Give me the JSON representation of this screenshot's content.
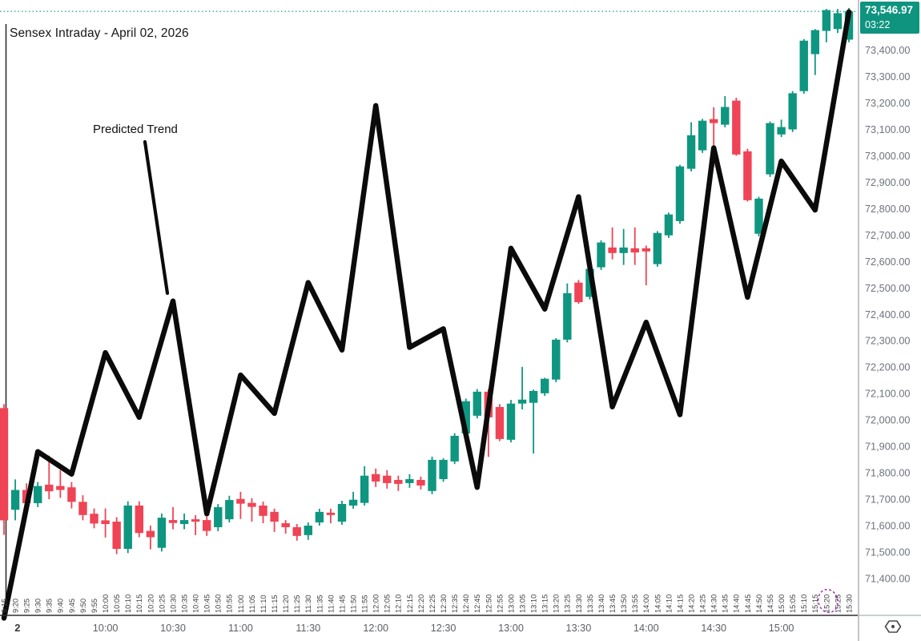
{
  "header": {
    "title": "Sensex Intraday - April 02, 2026"
  },
  "trend_annotation": {
    "label": "Predicted Trend"
  },
  "price_axis": {
    "badge": {
      "price": "73,546.97",
      "countdown": "03:22"
    },
    "tick_labels": [
      "73,400.00",
      "73,300.00",
      "73,200.00",
      "73,100.00",
      "73,000.00",
      "72,900.00",
      "72,800.00",
      "72,700.00",
      "72,600.00",
      "72,500.00",
      "72,400.00",
      "72,300.00",
      "72,200.00",
      "72,100.00",
      "72,000.00",
      "71,900.00",
      "71,800.00",
      "71,700.00",
      "71,600.00",
      "71,500.00",
      "71,400.00"
    ]
  },
  "time_axis": {
    "major_labels": [
      {
        "label": "2",
        "time": "9:21",
        "date_marker": true
      },
      {
        "label": "10:00",
        "time": "10:00",
        "date_marker": false
      },
      {
        "label": "10:30",
        "time": "10:30",
        "date_marker": false
      },
      {
        "label": "11:00",
        "time": "11:00",
        "date_marker": false
      },
      {
        "label": "11:30",
        "time": "11:30",
        "date_marker": false
      },
      {
        "label": "12:00",
        "time": "12:00",
        "date_marker": false
      },
      {
        "label": "12:30",
        "time": "12:30",
        "date_marker": false
      },
      {
        "label": "13:00",
        "time": "13:00",
        "date_marker": false
      },
      {
        "label": "13:30",
        "time": "13:30",
        "date_marker": false
      },
      {
        "label": "14:00",
        "time": "14:00",
        "date_marker": false
      },
      {
        "label": "14:30",
        "time": "14:30",
        "date_marker": false
      },
      {
        "label": "15:00",
        "time": "15:00",
        "date_marker": false
      }
    ],
    "circled_minor_label": "15:20",
    "circle_color": "#a23ab2"
  },
  "colors": {
    "up": "#0f9680",
    "down": "#ef4455",
    "trend": "#0b0b0b",
    "badge_bg": "#0f9480",
    "price_text": "#6f727c",
    "minor_text": "#3a3c40",
    "major_text": "#5c5e63",
    "axis_line": "#999ca6",
    "overlay_axis_line": "#2f2f2f"
  },
  "chart_data": {
    "type": [
      "candlestick",
      "line"
    ],
    "title": "Sensex Intraday - April 02, 2026",
    "instrument": "Sensex",
    "interval_minutes": 5,
    "session": [
      "9:15",
      "15:30"
    ],
    "ylim": [
      71330,
      73590
    ],
    "y_tick_step": 100,
    "last_price": 73546.97,
    "bar_countdown": "03:22",
    "candles": {
      "columns": [
        "time",
        "open",
        "high",
        "low",
        "close"
      ],
      "rows": [
        [
          "9:15",
          72045,
          72060,
          71565,
          71620
        ],
        [
          "9:20",
          71660,
          71775,
          71620,
          71735
        ],
        [
          "9:25",
          71735,
          71760,
          71655,
          71685
        ],
        [
          "9:30",
          71685,
          71765,
          71670,
          71750
        ],
        [
          "9:35",
          71755,
          71865,
          71700,
          71730
        ],
        [
          "9:40",
          71750,
          71810,
          71705,
          71735
        ],
        [
          "9:45",
          71745,
          71765,
          71665,
          71690
        ],
        [
          "9:50",
          71690,
          71715,
          71620,
          71640
        ],
        [
          "9:55",
          71645,
          71665,
          71590,
          71608
        ],
        [
          "10:00",
          71620,
          71665,
          71555,
          71606
        ],
        [
          "10:05",
          71615,
          71632,
          71492,
          71512
        ],
        [
          "10:10",
          71512,
          71692,
          71496,
          71676
        ],
        [
          "10:15",
          71676,
          71692,
          71556,
          71572
        ],
        [
          "10:20",
          71580,
          71600,
          71510,
          71556
        ],
        [
          "10:25",
          71516,
          71646,
          71502,
          71630
        ],
        [
          "10:30",
          71621,
          71670,
          71586,
          71610
        ],
        [
          "10:35",
          71606,
          71646,
          71586,
          71621
        ],
        [
          "10:40",
          71624,
          71640,
          71564,
          71615
        ],
        [
          "10:45",
          71621,
          71634,
          71561,
          71580
        ],
        [
          "10:50",
          71594,
          71682,
          71579,
          71670
        ],
        [
          "10:55",
          71624,
          71713,
          71612,
          71697
        ],
        [
          "11:00",
          71701,
          71728,
          71625,
          71683
        ],
        [
          "11:05",
          71686,
          71704,
          71615,
          71671
        ],
        [
          "11:10",
          71676,
          71691,
          71609,
          71637
        ],
        [
          "11:15",
          71652,
          71664,
          71576,
          71615
        ],
        [
          "11:20",
          71609,
          71621,
          71570,
          71594
        ],
        [
          "11:25",
          71594,
          71606,
          71543,
          71561
        ],
        [
          "11:30",
          71564,
          71612,
          71546,
          71600
        ],
        [
          "11:35",
          71612,
          71664,
          71600,
          71652
        ],
        [
          "11:40",
          71649,
          71664,
          71609,
          71640
        ],
        [
          "11:45",
          71615,
          71694,
          71603,
          71682
        ],
        [
          "11:50",
          71676,
          71728,
          71664,
          71698
        ],
        [
          "11:55",
          71686,
          71825,
          71676,
          71789
        ],
        [
          "12:00",
          71795,
          71816,
          71746,
          71767
        ],
        [
          "12:05",
          71789,
          71810,
          71740,
          71761
        ],
        [
          "12:10",
          71773,
          71789,
          71731,
          71758
        ],
        [
          "12:15",
          71761,
          71795,
          71743,
          71776
        ],
        [
          "12:20",
          71773,
          71785,
          71737,
          71752
        ],
        [
          "12:25",
          71731,
          71861,
          71719,
          71849
        ],
        [
          "12:30",
          71776,
          71855,
          71766,
          71849
        ],
        [
          "12:35",
          71843,
          71950,
          71833,
          71940
        ],
        [
          "12:40",
          71949,
          72081,
          71939,
          72071
        ],
        [
          "12:45",
          72016,
          72117,
          72006,
          72107
        ],
        [
          "12:50",
          72107,
          72117,
          71860,
          72010
        ],
        [
          "12:55",
          72049,
          72060,
          71920,
          71928
        ],
        [
          "13:00",
          71925,
          72076,
          71915,
          72062
        ],
        [
          "13:05",
          72062,
          72201,
          72040,
          72077
        ],
        [
          "13:10",
          72065,
          72115,
          71873,
          72110
        ],
        [
          "13:15",
          72101,
          72160,
          72091,
          72156
        ],
        [
          "13:20",
          72153,
          72310,
          72143,
          72304
        ],
        [
          "13:25",
          72304,
          72517,
          72294,
          72480
        ],
        [
          "13:30",
          72520,
          72530,
          72440,
          72446
        ],
        [
          "13:35",
          72466,
          72582,
          72456,
          72572
        ],
        [
          "13:40",
          72578,
          72680,
          72568,
          72672
        ],
        [
          "13:45",
          72653,
          72729,
          72608,
          72632
        ],
        [
          "13:50",
          72632,
          72723,
          72587,
          72653
        ],
        [
          "13:55",
          72650,
          72729,
          72587,
          72634
        ],
        [
          "14:00",
          72650,
          72660,
          72510,
          72638
        ],
        [
          "14:05",
          72590,
          72715,
          72580,
          72708
        ],
        [
          "14:10",
          72699,
          72785,
          72689,
          72778
        ],
        [
          "14:15",
          72753,
          72966,
          72743,
          72960
        ],
        [
          "14:20",
          72951,
          73127,
          72941,
          73078
        ],
        [
          "14:25",
          73021,
          73140,
          73011,
          73133
        ],
        [
          "14:30",
          73139,
          73184,
          72957,
          73124
        ],
        [
          "14:35",
          73118,
          73226,
          73108,
          73185
        ],
        [
          "14:40",
          73209,
          73220,
          73000,
          73005
        ],
        [
          "14:45",
          73017,
          73027,
          72827,
          72832
        ],
        [
          "14:50",
          72705,
          72845,
          72695,
          72838
        ],
        [
          "14:55",
          72930,
          73130,
          72920,
          73124
        ],
        [
          "15:00",
          73081,
          73137,
          73071,
          73109
        ],
        [
          "15:05",
          73100,
          73245,
          73090,
          73237
        ],
        [
          "15:10",
          73245,
          73442,
          73235,
          73436
        ],
        [
          "15:15",
          73385,
          73480,
          73306,
          73476
        ],
        [
          "15:20",
          73473,
          73556,
          73430,
          73552
        ],
        [
          "15:25",
          73480,
          73556,
          73465,
          73540
        ],
        [
          "15:30",
          73440,
          73560,
          73430,
          73546.97
        ]
      ]
    },
    "predicted_trend": {
      "name": "Predicted Trend",
      "interval_minutes": 15,
      "points": [
        [
          "9:15",
          71250
        ],
        [
          "9:30",
          71880
        ],
        [
          "9:45",
          71795
        ],
        [
          "10:00",
          72255
        ],
        [
          "10:15",
          72010
        ],
        [
          "10:30",
          72450
        ],
        [
          "10:45",
          71645
        ],
        [
          "11:00",
          72170
        ],
        [
          "11:15",
          72025
        ],
        [
          "11:30",
          72520
        ],
        [
          "11:45",
          72265
        ],
        [
          "12:00",
          73190
        ],
        [
          "12:15",
          72275
        ],
        [
          "12:30",
          72345
        ],
        [
          "12:45",
          71745
        ],
        [
          "13:00",
          72650
        ],
        [
          "13:15",
          72420
        ],
        [
          "13:30",
          72845
        ],
        [
          "13:45",
          72050
        ],
        [
          "14:00",
          72370
        ],
        [
          "14:15",
          72020
        ],
        [
          "14:30",
          73030
        ],
        [
          "14:45",
          72465
        ],
        [
          "15:00",
          72980
        ],
        [
          "15:15",
          72795
        ],
        [
          "15:30",
          73545
        ]
      ]
    }
  }
}
